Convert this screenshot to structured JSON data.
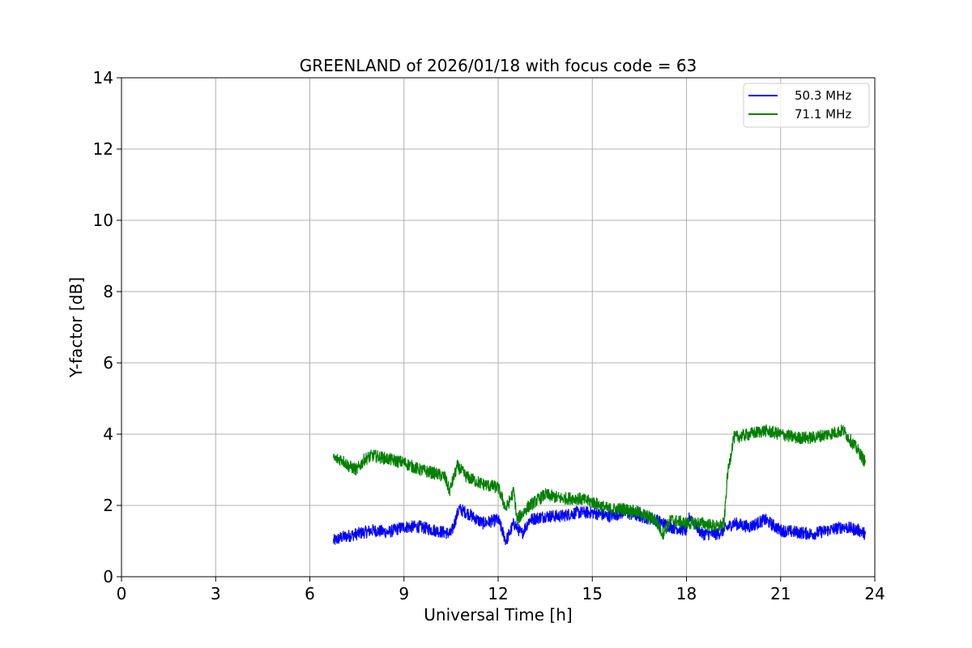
{
  "chart_data": {
    "type": "line",
    "title": "GREENLAND of 2026/01/18 with focus code = 63",
    "xlabel": "Universal Time [h]",
    "ylabel": "Y-factor [dB]",
    "xlim": [
      0,
      24
    ],
    "ylim": [
      0,
      14
    ],
    "xticks": [
      "0",
      "3",
      "6",
      "9",
      "12",
      "15",
      "18",
      "21",
      "24"
    ],
    "yticks": [
      "0",
      "2",
      "4",
      "6",
      "8",
      "10",
      "12",
      "14"
    ],
    "grid": true,
    "legend_position": "top-right",
    "series": [
      {
        "name": "50.3 MHz",
        "color": "#0000ff",
        "x": [
          6.75,
          7.0,
          7.5,
          8.0,
          8.5,
          9.0,
          9.5,
          10.0,
          10.5,
          10.75,
          11.0,
          11.5,
          12.0,
          12.25,
          12.5,
          12.75,
          13.0,
          13.5,
          14.0,
          14.5,
          15.0,
          15.5,
          16.0,
          16.5,
          17.0,
          17.25,
          17.5,
          18.0,
          18.1,
          18.5,
          19.0,
          19.5,
          20.0,
          20.5,
          21.0,
          21.5,
          22.0,
          22.5,
          23.0,
          23.5,
          23.7
        ],
        "y": [
          1.0,
          1.1,
          1.2,
          1.3,
          1.25,
          1.4,
          1.4,
          1.3,
          1.2,
          1.9,
          1.8,
          1.5,
          1.6,
          1.0,
          1.5,
          1.2,
          1.6,
          1.7,
          1.7,
          1.8,
          1.8,
          1.7,
          1.8,
          1.7,
          1.6,
          1.5,
          1.4,
          1.3,
          1.7,
          1.2,
          1.2,
          1.5,
          1.4,
          1.6,
          1.3,
          1.25,
          1.2,
          1.3,
          1.4,
          1.3,
          1.2
        ],
        "noise": 0.35
      },
      {
        "name": "71.1 MHz",
        "color": "#008000",
        "x": [
          6.75,
          7.0,
          7.25,
          7.5,
          7.75,
          8.0,
          8.5,
          9.0,
          9.5,
          10.0,
          10.3,
          10.45,
          10.7,
          11.0,
          11.5,
          12.0,
          12.25,
          12.5,
          12.6,
          13.0,
          13.5,
          14.0,
          14.5,
          15.0,
          15.5,
          16.0,
          16.5,
          17.0,
          17.25,
          17.5,
          18.0,
          18.5,
          19.0,
          19.2,
          19.3,
          19.5,
          20.0,
          20.5,
          21.0,
          21.5,
          22.0,
          22.5,
          23.0,
          23.5,
          23.7
        ],
        "y": [
          3.3,
          3.3,
          3.1,
          3.0,
          3.3,
          3.4,
          3.3,
          3.2,
          3.0,
          2.9,
          2.8,
          2.4,
          3.1,
          2.8,
          2.6,
          2.5,
          1.9,
          2.4,
          1.6,
          2.0,
          2.3,
          2.2,
          2.2,
          2.1,
          1.9,
          1.9,
          1.8,
          1.6,
          1.2,
          1.6,
          1.5,
          1.5,
          1.4,
          1.5,
          2.8,
          3.9,
          4.0,
          4.1,
          4.0,
          3.9,
          3.9,
          4.0,
          4.1,
          3.5,
          3.2
        ],
        "noise": 0.35
      }
    ]
  }
}
